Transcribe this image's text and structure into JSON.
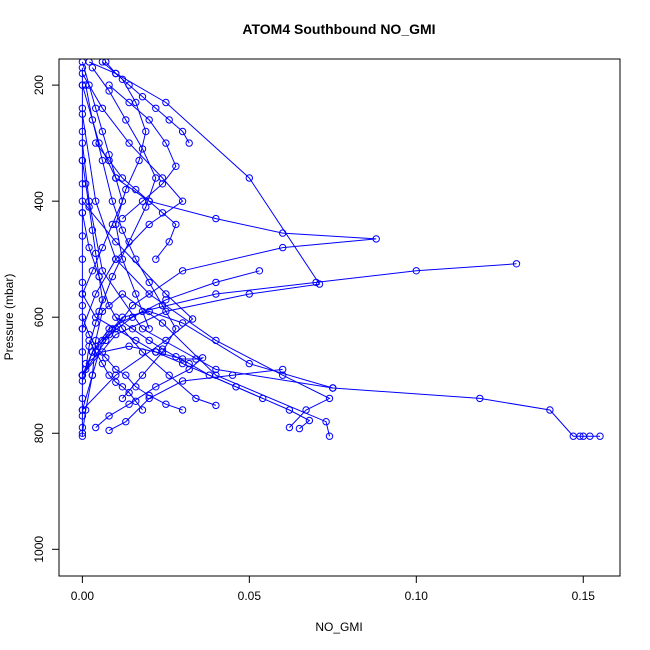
{
  "chart_data": {
    "type": "line",
    "title": "ATOM4 Southbound NO_GMI",
    "xlabel": "NO_GMI",
    "ylabel": "Pressure (mbar)",
    "xlim": [
      -0.007,
      0.161
    ],
    "ylim": [
      1046,
      155
    ],
    "y_reversed": true,
    "x_ticks": [
      "0.00",
      "0.05",
      "0.10",
      "0.15"
    ],
    "x_tick_values": [
      0,
      0.05,
      0.1,
      0.15
    ],
    "y_ticks": [
      "200",
      "400",
      "600",
      "800",
      "1000"
    ],
    "y_tick_values": [
      200,
      400,
      600,
      800,
      1000
    ],
    "marker": "open-circle",
    "series_color": "#0000ff",
    "grid": false,
    "legend": "none",
    "series": [
      {
        "x": [
          0.0,
          0.001,
          0.003,
          0.004,
          0.006,
          0.012,
          0.024,
          0.04,
          0.073,
          0.074
        ],
        "y": [
          800,
          760,
          700,
          640,
          590,
          560,
          610,
          700,
          780,
          805
        ]
      },
      {
        "x": [
          0.155,
          0.152,
          0.15,
          0.149,
          0.147,
          0.14,
          0.119,
          0.075,
          0.04,
          0.018,
          0.006,
          0.002,
          0.0
        ],
        "y": [
          805,
          805,
          805,
          805,
          805,
          760,
          740,
          722,
          690,
          620,
          520,
          400,
          300
        ]
      },
      {
        "x": [
          0.0,
          0.003,
          0.006,
          0.009,
          0.012,
          0.02,
          0.03,
          0.05,
          0.075
        ],
        "y": [
          760,
          700,
          640,
          620,
          600,
          590,
          610,
          680,
          722
        ]
      },
      {
        "x": [
          0.0,
          0.004,
          0.01,
          0.02,
          0.04,
          0.06,
          0.074,
          0.067,
          0.062
        ],
        "y": [
          250,
          400,
          500,
          560,
          640,
          700,
          740,
          760,
          790
        ]
      },
      {
        "x": [
          0.13,
          0.1,
          0.07,
          0.04,
          0.018,
          0.008,
          0.003,
          0.0
        ],
        "y": [
          508,
          520,
          540,
          560,
          590,
          620,
          660,
          710
        ]
      },
      {
        "x": [
          0.0,
          0.005,
          0.01,
          0.02,
          0.04,
          0.06,
          0.088,
          0.06,
          0.03,
          0.015,
          0.007,
          0.0
        ],
        "y": [
          200,
          300,
          360,
          400,
          430,
          455,
          465,
          480,
          520,
          580,
          640,
          700
        ]
      },
      {
        "x": [
          0.002,
          0.01,
          0.025,
          0.05,
          0.071,
          0.05,
          0.025,
          0.01,
          0.0
        ],
        "y": [
          160,
          180,
          230,
          360,
          543,
          560,
          590,
          630,
          700
        ]
      },
      {
        "x": [
          0.0,
          0.01,
          0.025,
          0.033,
          0.025,
          0.01,
          0.0
        ],
        "y": [
          400,
          470,
          560,
          603,
          640,
          700,
          760
        ]
      },
      {
        "x": [
          0.053,
          0.04,
          0.025,
          0.015,
          0.008,
          0.003,
          0.0
        ],
        "y": [
          520,
          540,
          570,
          600,
          630,
          660,
          700
        ]
      },
      {
        "x": [
          0.0,
          0.006,
          0.014,
          0.024,
          0.03,
          0.02,
          0.01,
          0.004,
          0.0
        ],
        "y": [
          180,
          240,
          300,
          360,
          400,
          440,
          500,
          560,
          620
        ]
      },
      {
        "x": [
          0.06,
          0.045,
          0.03,
          0.02,
          0.013,
          0.008
        ],
        "y": [
          690,
          700,
          710,
          740,
          780,
          795
        ]
      },
      {
        "x": [
          0.001,
          0.006,
          0.014,
          0.022,
          0.03,
          0.034,
          0.036,
          0.032,
          0.022,
          0.014,
          0.008,
          0.004
        ],
        "y": [
          680,
          660,
          650,
          660,
          672,
          672,
          670,
          690,
          720,
          750,
          770,
          790
        ]
      },
      {
        "x": [
          0.0,
          0.004,
          0.01,
          0.016,
          0.022,
          0.03,
          0.046,
          0.062,
          0.068,
          0.065
        ],
        "y": [
          560,
          600,
          620,
          640,
          660,
          680,
          720,
          760,
          778,
          792
        ]
      },
      {
        "x": [
          0.0,
          0.002,
          0.005,
          0.008,
          0.012,
          0.018,
          0.026,
          0.034,
          0.04
        ],
        "y": [
          420,
          480,
          530,
          580,
          620,
          660,
          700,
          740,
          752
        ]
      },
      {
        "x": [
          0.0,
          0.002,
          0.004,
          0.006,
          0.008,
          0.01,
          0.012,
          0.009,
          0.006,
          0.003,
          0.0
        ],
        "y": [
          160,
          200,
          240,
          280,
          320,
          360,
          400,
          440,
          480,
          520,
          560
        ]
      },
      {
        "x": [
          0.003,
          0.008,
          0.013,
          0.018,
          0.022,
          0.019,
          0.014,
          0.009,
          0.005
        ],
        "y": [
          170,
          210,
          260,
          310,
          360,
          410,
          470,
          530,
          590
        ]
      },
      {
        "x": [
          0.006,
          0.012,
          0.016,
          0.019,
          0.017,
          0.013,
          0.01,
          0.012,
          0.016,
          0.02
        ],
        "y": [
          160,
          190,
          230,
          280,
          330,
          380,
          440,
          500,
          560,
          620
        ]
      },
      {
        "x": [
          0.001,
          0.003,
          0.006,
          0.009,
          0.012,
          0.016,
          0.02,
          0.024,
          0.028,
          0.024,
          0.018,
          0.012
        ],
        "y": [
          200,
          260,
          330,
          400,
          450,
          500,
          540,
          580,
          620,
          660,
          700,
          740
        ]
      },
      {
        "x": [
          0.0,
          0.002,
          0.004,
          0.007,
          0.01,
          0.013,
          0.016,
          0.02,
          0.025,
          0.03
        ],
        "y": [
          600,
          630,
          650,
          670,
          690,
          700,
          720,
          735,
          750,
          760
        ]
      },
      {
        "x": [
          0.004,
          0.008,
          0.012,
          0.016,
          0.02,
          0.024,
          0.028,
          0.026,
          0.022
        ],
        "y": [
          300,
          330,
          360,
          380,
          400,
          420,
          440,
          470,
          500
        ]
      },
      {
        "x": [
          0.008,
          0.014,
          0.02,
          0.025,
          0.028,
          0.024,
          0.018,
          0.012
        ],
        "y": [
          200,
          230,
          260,
          300,
          340,
          370,
          400,
          430
        ]
      },
      {
        "x": [
          0.0,
          0.001,
          0.002,
          0.003,
          0.004,
          0.005,
          0.006,
          0.004,
          0.002,
          0.001
        ],
        "y": [
          330,
          370,
          410,
          450,
          490,
          530,
          570,
          610,
          650,
          690
        ]
      },
      {
        "x": [
          0.01,
          0.015,
          0.02,
          0.024,
          0.028,
          0.032,
          0.038,
          0.046,
          0.054
        ],
        "y": [
          600,
          620,
          640,
          655,
          668,
          680,
          700,
          720,
          740
        ]
      },
      {
        "x": [
          0.002,
          0.004,
          0.006,
          0.008,
          0.01,
          0.012,
          0.014,
          0.016,
          0.018
        ],
        "y": [
          640,
          660,
          680,
          700,
          712,
          720,
          730,
          745,
          760
        ]
      },
      {
        "x": [
          0.007,
          0.01,
          0.014,
          0.018,
          0.022,
          0.026,
          0.03,
          0.032
        ],
        "y": [
          160,
          180,
          200,
          220,
          240,
          260,
          280,
          300
        ]
      },
      {
        "x": [
          0.0,
          0.0,
          0.0,
          0.0,
          0.0,
          0.0,
          0.0,
          0.0,
          0.0,
          0.0,
          0.0,
          0.0,
          0.0,
          0.0,
          0.0,
          0.0,
          0.0,
          0.0
        ],
        "y": [
          170,
          200,
          240,
          280,
          330,
          370,
          420,
          460,
          500,
          540,
          580,
          620,
          660,
          700,
          740,
          770,
          790,
          805
        ]
      }
    ]
  }
}
